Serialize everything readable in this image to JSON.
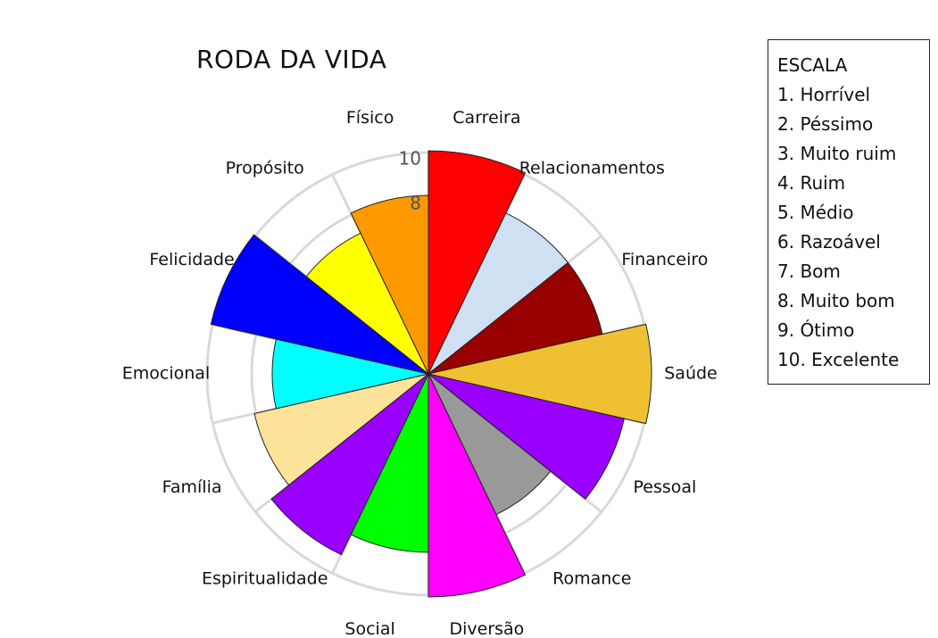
{
  "chart_data": {
    "type": "polar-area",
    "title": "RODA DA VIDA",
    "rmax": 10,
    "tick_labels": [
      "10",
      "8"
    ],
    "categories": [
      "Carreira",
      "Relacionamentos",
      "Financeiro",
      "Saúde",
      "Pessoal",
      "Romance",
      "Diversão",
      "Social",
      "Espiritualidade",
      "Família",
      "Emocional",
      "Felicidade",
      "Propósito",
      "Físico"
    ],
    "values": [
      10,
      8,
      8,
      10,
      9,
      7,
      10,
      8,
      9,
      8,
      7,
      10,
      7,
      8
    ],
    "colors": [
      "#ff0000",
      "#cfe0f2",
      "#990000",
      "#f0c033",
      "#9900ff",
      "#999999",
      "#ff00ff",
      "#00ff00",
      "#9900ff",
      "#fde39a",
      "#00ffff",
      "#0000ff",
      "#ffff00",
      "#ff9900"
    ],
    "grid": true
  },
  "legend": {
    "title": "ESCALA",
    "items": [
      "1. Horrível",
      "2. Péssimo",
      "3. Muito ruim",
      "4. Ruim",
      "5. Médio",
      "6. Razoável",
      "7. Bom",
      "8. Muito bom",
      "9. Ótimo",
      "10. Excelente"
    ]
  }
}
